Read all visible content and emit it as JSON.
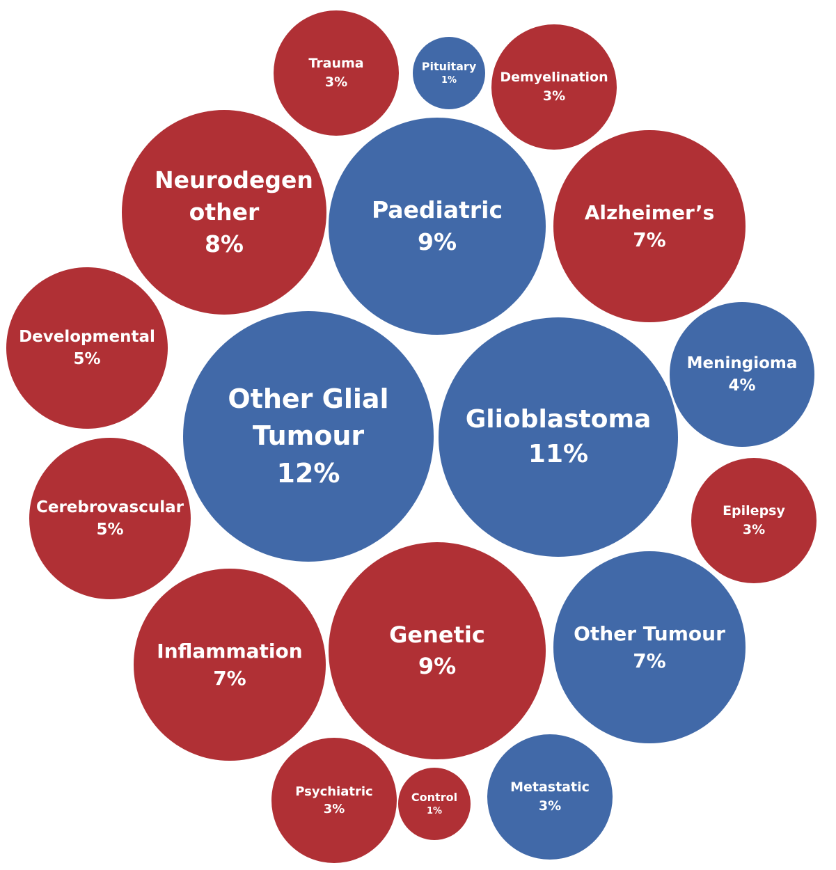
{
  "chart_data": {
    "type": "packed-bubble",
    "categories": [
      "Trauma",
      "Pituitary",
      "Demyelination",
      "Neurodegen other",
      "Paediatric",
      "Alzheimer’s",
      "Developmental",
      "Other Glial Tumour",
      "Glioblastoma",
      "Meningioma",
      "Epilepsy",
      "Cerebrovascular",
      "Inflammation",
      "Genetic",
      "Other Tumour",
      "Psychiatric",
      "Control",
      "Metastatic"
    ],
    "values": [
      3,
      1,
      3,
      8,
      9,
      7,
      5,
      12,
      11,
      4,
      3,
      5,
      7,
      9,
      7,
      3,
      1,
      3
    ],
    "value_labels": [
      "3%",
      "1%",
      "3%",
      "8%",
      "9%",
      "7%",
      "5%",
      "12%",
      "11%",
      "4%",
      "3%",
      "5%",
      "7%",
      "9%",
      "7%",
      "3%",
      "1%",
      "3%"
    ],
    "colors": [
      "#b03035",
      "#4169a8",
      "#b03035",
      "#b03035",
      "#4169a8",
      "#b03035",
      "#b03035",
      "#4169a8",
      "#4169a8",
      "#4169a8",
      "#b03035",
      "#b03035",
      "#b03035",
      "#b03035",
      "#4169a8",
      "#b03035",
      "#b03035",
      "#4169a8"
    ]
  }
}
